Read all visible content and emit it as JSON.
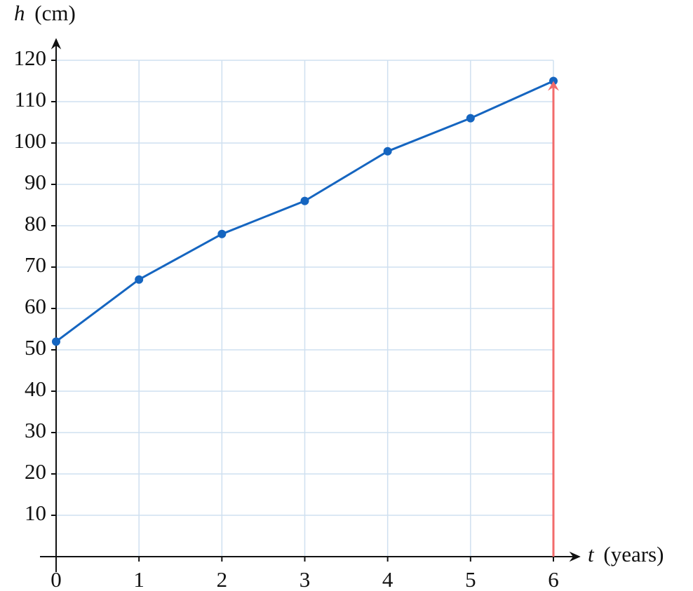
{
  "chart_data": {
    "type": "line",
    "x_label": {
      "symbol": "t",
      "unit": "(years)"
    },
    "y_label": {
      "symbol": "h",
      "unit": "(cm)"
    },
    "x": [
      0,
      1,
      2,
      3,
      4,
      5,
      6
    ],
    "series": [
      {
        "color": "#1565c0",
        "values": [
          52,
          67,
          78,
          86,
          98,
          106,
          115
        ]
      }
    ],
    "xlim": [
      0,
      6
    ],
    "ylim": [
      0,
      120
    ],
    "xticks": [
      0,
      1,
      2,
      3,
      4,
      5,
      6
    ],
    "yticks": [
      10,
      20,
      30,
      40,
      50,
      60,
      70,
      80,
      90,
      100,
      110,
      120
    ],
    "grid": true,
    "grid_color": "#cfe0f0",
    "arrow": {
      "x": 6,
      "y": [
        0,
        115
      ],
      "color": "#f26b6b"
    }
  }
}
